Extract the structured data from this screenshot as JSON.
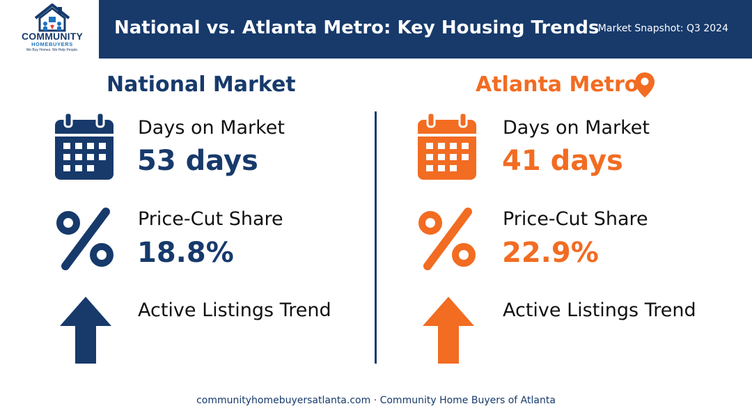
{
  "logo": {
    "title": "COMMUNITY",
    "subtitle": "HOMEBUYERS",
    "tagline": "We Buy Homes. We Help People."
  },
  "header": {
    "title": "National vs. Atlanta Metro: Key Housing Trends",
    "snapshot": "Market Snapshot: Q3 2024"
  },
  "colors": {
    "navy": "#173a6b",
    "orange": "#f26c22"
  },
  "national": {
    "heading": "National Market",
    "days_label": "Days on Market",
    "days_value": "53 days",
    "price_cut_label": "Price-Cut Share",
    "price_cut_value": "18.8%",
    "listings_label": "Active Listings Trend",
    "listings_icon": "arrow-up-icon"
  },
  "atlanta": {
    "heading": "Atlanta Metro",
    "heading_icon": "map-pin-icon",
    "days_label": "Days on Market",
    "days_value": "41 days",
    "price_cut_label": "Price-Cut Share",
    "price_cut_value": "22.9%",
    "listings_label": "Active Listings Trend",
    "listings_icon": "arrow-up-icon"
  },
  "footer": {
    "text": "communityhomebuyersatlanta.com · Community Home Buyers of Atlanta"
  }
}
